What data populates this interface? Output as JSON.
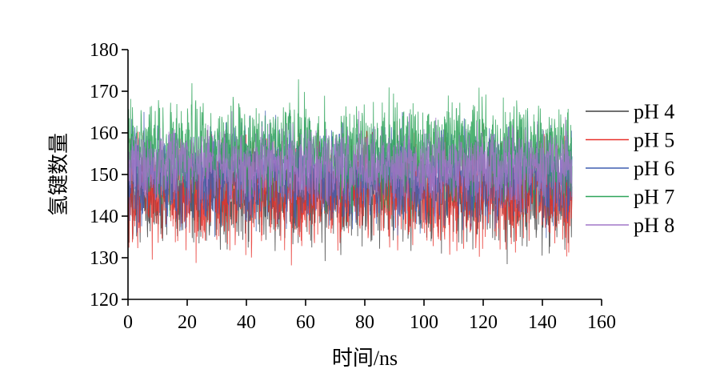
{
  "chart_data": {
    "type": "line",
    "xlabel": "时间/ns",
    "ylabel": "氢键数量",
    "xlim": [
      0,
      160
    ],
    "ylim": [
      120,
      180
    ],
    "xticks": [
      0,
      20,
      40,
      60,
      80,
      100,
      120,
      140,
      160
    ],
    "yticks": [
      120,
      130,
      140,
      150,
      160,
      170,
      180
    ],
    "x_range_of_data": [
      0,
      150
    ],
    "grid": false,
    "legend_position": "right",
    "series": [
      {
        "name": "pH 4",
        "color": "#404040",
        "mean": 145,
        "spread": 5.5,
        "min": 126,
        "max": 162
      },
      {
        "name": "pH 5",
        "color": "#e8312b",
        "mean": 146,
        "spread": 6,
        "min": 126,
        "max": 173
      },
      {
        "name": "pH 6",
        "color": "#3f5fb0",
        "mean": 150,
        "spread": 5.5,
        "min": 126,
        "max": 172
      },
      {
        "name": "pH 7",
        "color": "#2fa55a",
        "mean": 156,
        "spread": 5.5,
        "min": 138,
        "max": 176
      },
      {
        "name": "pH 8",
        "color": "#a276c8",
        "mean": 152,
        "spread": 4.5,
        "min": 136,
        "max": 171
      }
    ]
  }
}
